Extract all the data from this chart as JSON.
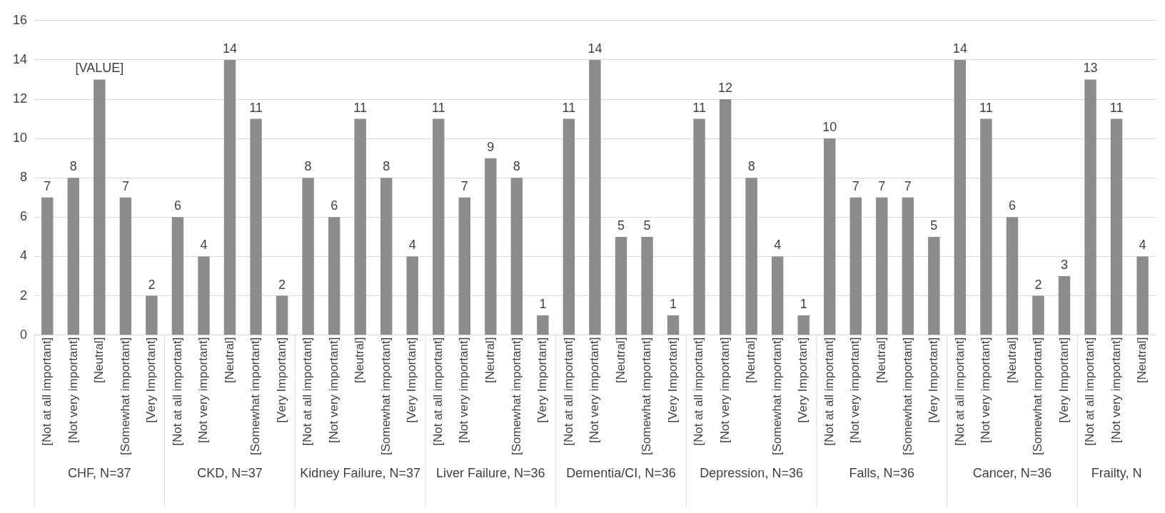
{
  "chart_data": {
    "type": "bar",
    "categories": [
      "[Not at all important]",
      "[Not very important]",
      "[Neutral]",
      "[Somewhat important]",
      "[Very Important]",
      "[Not at all important]",
      "[Not very important]",
      "[Neutral]",
      "[Somewhat important]",
      "[Very Important]",
      "[Not at all important]",
      "[Not very important]",
      "[Neutral]",
      "[Somewhat important]",
      "[Very Important]",
      "[Not at all important]",
      "[Not very important]",
      "[Neutral]",
      "[Somewhat important]",
      "[Very Important]",
      "[Not at all important]",
      "[Not very important]",
      "[Neutral]",
      "[Somewhat important]",
      "[Very Important]",
      "[Not at all important]",
      "[Not very important]",
      "[Neutral]",
      "[Somewhat important]",
      "[Very Important]",
      "[Not at all important]",
      "[Not very important]",
      "[Neutral]",
      "[Somewhat important]",
      "[Very Important]",
      "[Not at all important]",
      "[Not very important]",
      "[Neutral]",
      "[Somewhat important]",
      "[Very Important]",
      "[Not at all important]",
      "[Not very important]",
      "[Neutral]"
    ],
    "values": [
      7,
      8,
      13,
      7,
      2,
      6,
      4,
      14,
      11,
      2,
      8,
      6,
      11,
      8,
      4,
      11,
      7,
      9,
      8,
      1,
      11,
      14,
      5,
      5,
      1,
      11,
      12,
      8,
      4,
      1,
      10,
      7,
      7,
      7,
      5,
      14,
      11,
      6,
      2,
      3,
      13,
      11,
      4
    ],
    "value_labels": [
      "7",
      "8",
      "[VALUE]",
      "7",
      "2",
      "6",
      "4",
      "14",
      "11",
      "2",
      "8",
      "6",
      "11",
      "8",
      "4",
      "11",
      "7",
      "9",
      "8",
      "1",
      "11",
      "14",
      "5",
      "5",
      "1",
      "11",
      "12",
      "8",
      "4",
      "1",
      "10",
      "7",
      "7",
      "7",
      "5",
      "14",
      "11",
      "6",
      "2",
      "3",
      "13",
      "11",
      "4"
    ],
    "color": "#8c8c8c",
    "ylim": [
      0,
      16
    ],
    "yticks": [
      0,
      2,
      4,
      6,
      8,
      10,
      12,
      14,
      16
    ],
    "grid": "y",
    "legend": false,
    "annotations": [
      "CHF, N=37",
      "CKD, N=37",
      "Kidney Failure, N=37",
      "Liver Failure, N=36",
      "Dementia/CI, N=36",
      "Depression, N=36",
      "Falls, N=36",
      "Cancer, N=36",
      "Frailty, N"
    ]
  }
}
